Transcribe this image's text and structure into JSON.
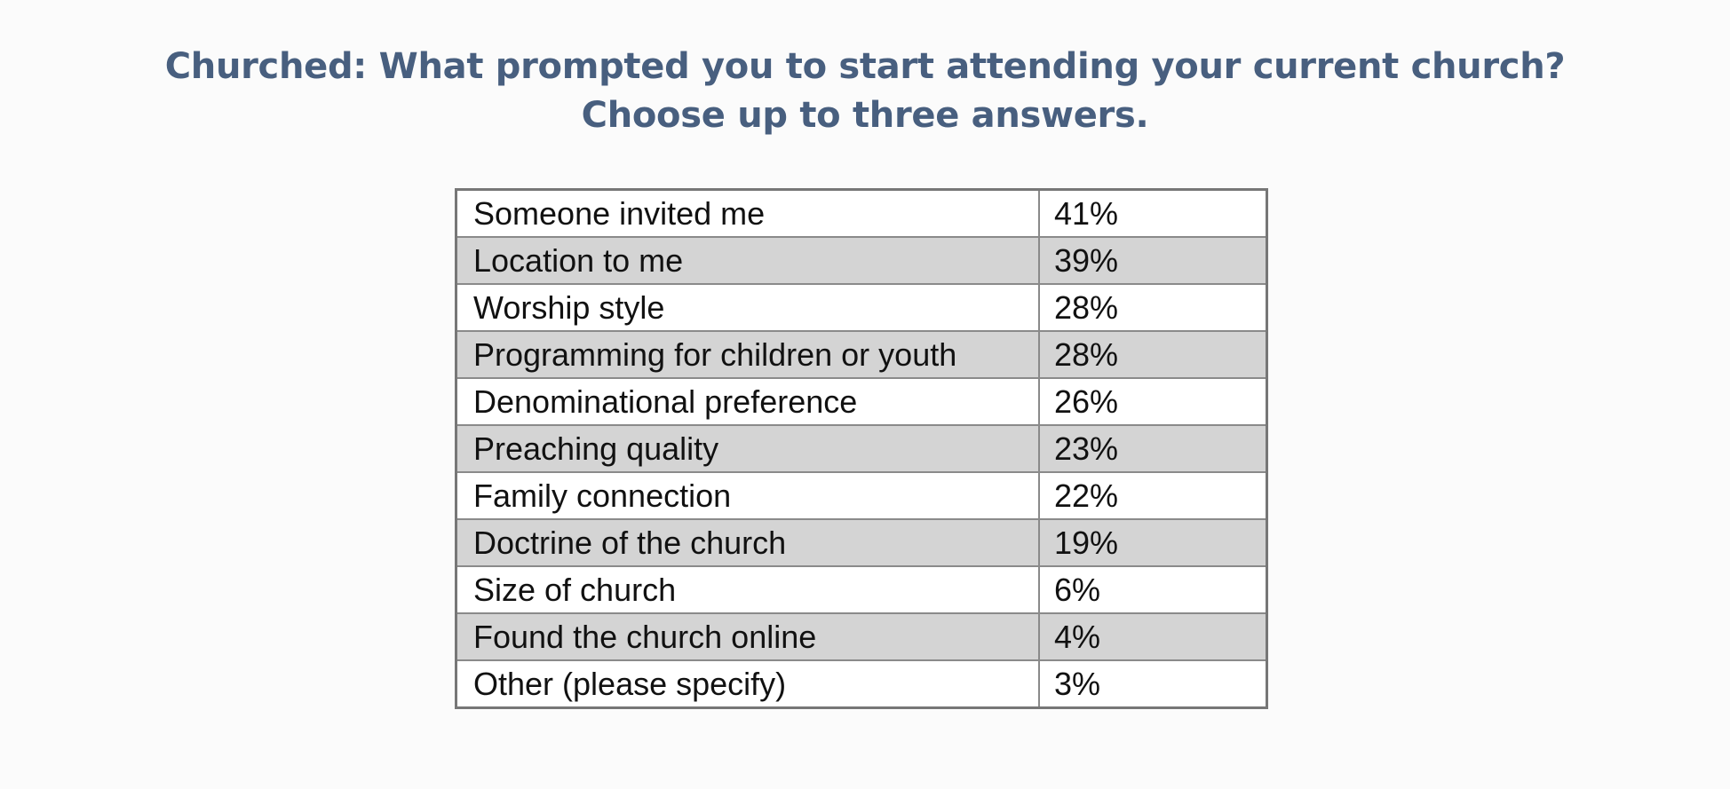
{
  "chart_data": {
    "type": "table",
    "title": "Churched: What prompted you to start attending your current church?",
    "subtitle": "Choose up to three answers.",
    "rows": [
      {
        "answer": "Someone invited me",
        "percent": "41%",
        "value": 41
      },
      {
        "answer": "Location to me",
        "percent": "39%",
        "value": 39
      },
      {
        "answer": "Worship style",
        "percent": "28%",
        "value": 28
      },
      {
        "answer": "Programming for children or youth",
        "percent": "28%",
        "value": 28
      },
      {
        "answer": "Denominational preference",
        "percent": "26%",
        "value": 26
      },
      {
        "answer": "Preaching quality",
        "percent": "23%",
        "value": 23
      },
      {
        "answer": "Family connection",
        "percent": "22%",
        "value": 22
      },
      {
        "answer": "Doctrine of the church",
        "percent": "19%",
        "value": 19
      },
      {
        "answer": "Size of church",
        "percent": "6%",
        "value": 6
      },
      {
        "answer": "Found the church online",
        "percent": "4%",
        "value": 4
      },
      {
        "answer": "Other (please specify)",
        "percent": "3%",
        "value": 3
      }
    ]
  },
  "colors": {
    "title": "#485f7f",
    "row_alt": "#d4d4d4",
    "row": "#ffffff",
    "border": "#8a8a8a"
  }
}
